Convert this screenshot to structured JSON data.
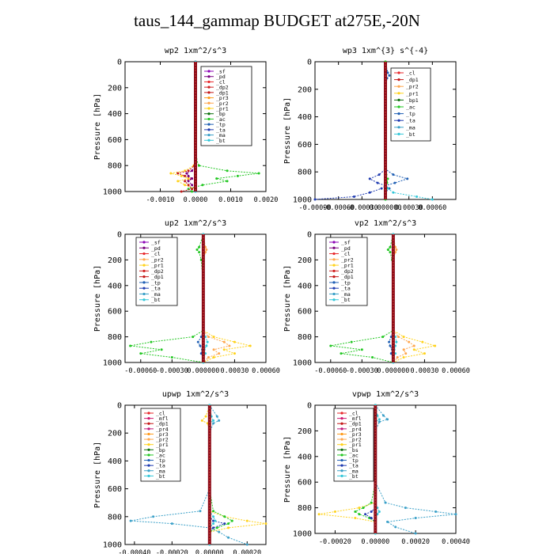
{
  "figure_title": "taus_144_gammap  BUDGET at275E,-20N",
  "colors": {
    "_sf": "#8b00b6",
    "_pd": "#7a0080",
    "_cl": "#e8262a",
    "_dp2": "#d02020",
    "_dp1": "#c41818",
    "_pr3": "#ff9a1a",
    "_pr2": "#ffa64d",
    "_pr1": "#ffd21a",
    "_bp": "#0a6e0a",
    "_ac": "#22c722",
    "_tp": "#1f5fb4",
    "_ta": "#1e3ab0",
    "_ma": "#3aa0c8",
    "_bt": "#33c7d9",
    "_mfl": "#d01870",
    "_pr4": "#c0187a",
    "_bp1": "#0a6e0a",
    "_bs": "#0a6e0a",
    "_rs": "#8a0010"
  },
  "chart_data": [
    {
      "type": "line",
      "title": "wp2  1xm^2/s^3",
      "ylabel": "Pressure [hPa]",
      "ylim": [
        1000,
        0
      ],
      "yticks": [
        "0",
        "200",
        "400",
        "600",
        "800",
        "1000"
      ],
      "xlim": [
        -0.002,
        0.002
      ],
      "xticks": [
        -0.001,
        0.0,
        0.001,
        0.002
      ],
      "xtick_labels": [
        "-0.0010",
        "0.0000",
        "0.0010",
        "0.0020"
      ],
      "legend": [
        "_sf",
        "_pd",
        "_cl",
        "_dp2",
        "_dp1",
        "_pr3",
        "_pr2",
        "_pr1",
        "_bp",
        "_ac",
        "_tp",
        "_ta",
        "_ma",
        "_bt"
      ],
      "y": [
        0,
        100,
        120,
        140,
        200,
        400,
        600,
        750,
        800,
        840,
        860,
        880,
        900,
        920,
        950,
        980,
        1000
      ],
      "series": [
        {
          "name": "_ac",
          "values": [
            0,
            0,
            0,
            0,
            0,
            0,
            0,
            2e-05,
            0.0001,
            0.0009,
            0.0018,
            0.0012,
            0.0006,
            0.0009,
            0.0002,
            -0.0002,
            -0.0001
          ]
        },
        {
          "name": "_pr1",
          "values": [
            0,
            0,
            0,
            0,
            0,
            0,
            0,
            0,
            -5e-05,
            -0.0003,
            -0.0007,
            -0.0004,
            -0.0002,
            -0.0005,
            -0.0003,
            0,
            0
          ]
        },
        {
          "name": "_dp1",
          "values": [
            0,
            0,
            0,
            0,
            0,
            0,
            0,
            0,
            -3e-05,
            -0.0002,
            -0.0005,
            -0.0003,
            -0.0001,
            -0.0003,
            -0.0002,
            -0.0001,
            -0.0004
          ]
        },
        {
          "name": "_pd",
          "values": [
            0,
            0,
            0,
            0,
            0,
            0,
            0,
            0,
            0,
            -0.0001,
            -0.00025,
            -0.0002,
            -0.0001,
            -0.0002,
            -0.0001,
            0,
            0
          ]
        },
        {
          "name": "_bt",
          "values": [
            0,
            0,
            1e-05,
            0,
            0,
            0,
            0,
            0,
            0,
            0,
            0,
            0,
            0,
            0,
            0,
            0,
            0
          ]
        }
      ]
    },
    {
      "type": "line",
      "title": "wp3  1xm^{3} s^{-4}",
      "ylabel": "Pressure [hPa]",
      "ylim": [
        1000,
        0
      ],
      "yticks": [
        "0",
        "200",
        "400",
        "600",
        "800",
        "1000"
      ],
      "xlim": [
        -0.0009,
        0.0009
      ],
      "xticks": [
        -0.0009,
        -0.0006,
        -0.0003,
        0,
        0.0003,
        0.0006
      ],
      "xtick_labels": [
        "-0.00090",
        "-0.00060",
        "-0.00030",
        "0.000000",
        "0.00030",
        "0.00060"
      ],
      "legend": [
        "_cl",
        "_dp1",
        "_pr2",
        "_pr1",
        "_bp1",
        "_ac",
        "_tp",
        "_ta",
        "_ma",
        "_bt"
      ],
      "y": [
        0,
        80,
        100,
        120,
        200,
        600,
        780,
        820,
        850,
        880,
        900,
        920,
        950,
        980,
        1000
      ],
      "series": [
        {
          "name": "_tp",
          "values": [
            0,
            3e-05,
            5e-05,
            2e-05,
            0,
            0,
            0,
            0.0001,
            0.00028,
            0.00012,
            0,
            5e-05,
            0,
            0,
            0
          ]
        },
        {
          "name": "_ta",
          "values": [
            0,
            0,
            0,
            0,
            0,
            0,
            0,
            -8e-05,
            -0.0002,
            -0.0001,
            0,
            -5e-05,
            -0.0002,
            -0.0004,
            -0.0009
          ]
        },
        {
          "name": "_bt",
          "values": [
            0,
            0,
            0,
            0,
            0,
            0,
            0,
            0,
            0,
            0,
            0,
            3e-05,
            0.0001,
            0.0004,
            0.0006
          ]
        },
        {
          "name": "_ac",
          "values": [
            0,
            0,
            0,
            0,
            0,
            0,
            0,
            1e-05,
            3e-05,
            2e-05,
            0,
            1e-05,
            0,
            0,
            0
          ]
        }
      ]
    },
    {
      "type": "line",
      "title": "up2  1xm^2/s^3",
      "ylabel": "Pressure [hPa]",
      "ylim": [
        1000,
        0
      ],
      "yticks": [
        "0",
        "200",
        "400",
        "600",
        "800",
        "1000"
      ],
      "xlim": [
        -0.00075,
        0.0006
      ],
      "xticks": [
        -0.0006,
        -0.0003,
        0,
        0.0003,
        0.0006
      ],
      "xtick_labels": [
        "-0.00060",
        "-0.00030",
        "0.000000",
        "0.00030",
        "0.00060"
      ],
      "legend": [
        "_sf",
        "_pd",
        "_cl",
        "_pr2",
        "_pr1",
        "_dp2",
        "_dp1",
        "_tp",
        "_ta",
        "_ma",
        "_bt"
      ],
      "y": [
        0,
        100,
        120,
        140,
        200,
        400,
        600,
        750,
        800,
        840,
        870,
        900,
        930,
        960,
        1000
      ],
      "series": [
        {
          "name": "_ac",
          "values": [
            0,
            -4e-05,
            -6e-05,
            -4e-05,
            -2e-05,
            0,
            0,
            0,
            -0.0001,
            -0.0005,
            -0.0007,
            -0.0004,
            -0.0006,
            -0.0003,
            0
          ]
        },
        {
          "name": "_pr1",
          "values": [
            0,
            0,
            0,
            0,
            0,
            0,
            0,
            0,
            0.0001,
            0.0003,
            0.00045,
            0.0002,
            0.0003,
            0.0001,
            0
          ]
        },
        {
          "name": "_pr2",
          "values": [
            0,
            2e-05,
            3e-05,
            2e-05,
            0,
            0,
            0,
            0,
            5e-05,
            0.0002,
            0.00025,
            0.0001,
            0.00015,
            5e-05,
            0
          ]
        },
        {
          "name": "_tp",
          "values": [
            0,
            0,
            0,
            0,
            0,
            0,
            0,
            0,
            -2e-05,
            -5e-05,
            -3e-05,
            -1e-05,
            -2e-05,
            0,
            0
          ]
        },
        {
          "name": "_bt",
          "values": [
            0,
            0,
            0,
            0,
            0,
            0,
            0,
            0,
            2e-05,
            4e-05,
            3e-05,
            1e-05,
            2e-05,
            0,
            0
          ]
        }
      ]
    },
    {
      "type": "line",
      "title": "vp2  1xm^2/s^3",
      "ylabel": "Pressure [hPa]",
      "ylim": [
        1000,
        0
      ],
      "yticks": [
        "0",
        "200",
        "400",
        "600",
        "800",
        "1000"
      ],
      "xlim": [
        -0.00075,
        0.0006
      ],
      "xticks": [
        -0.0006,
        -0.0003,
        0,
        0.0003,
        0.0006
      ],
      "xtick_labels": [
        "-0.00060",
        "-0.00030",
        "0.000000",
        "0.00030",
        "0.00060"
      ],
      "legend": [
        "_sf",
        "_pd",
        "_cl",
        "_pr2",
        "_pr1",
        "_dp2",
        "_dp1",
        "_tp",
        "_ta",
        "_ma",
        "_bt"
      ],
      "y": [
        0,
        100,
        120,
        140,
        200,
        400,
        600,
        750,
        800,
        840,
        870,
        900,
        930,
        960,
        1000
      ],
      "series": [
        {
          "name": "_ac",
          "values": [
            0,
            -3e-05,
            -5e-05,
            -3e-05,
            -1e-05,
            0,
            0,
            0,
            -0.0001,
            -0.0004,
            -0.0006,
            -0.0003,
            -0.0005,
            -0.0002,
            0
          ]
        },
        {
          "name": "_pr1",
          "values": [
            0,
            0,
            0,
            0,
            0,
            0,
            0,
            0,
            0.0001,
            0.00028,
            0.0004,
            0.0002,
            0.0003,
            0.0001,
            0
          ]
        },
        {
          "name": "_pr2",
          "values": [
            0,
            2e-05,
            3e-05,
            2e-05,
            0,
            0,
            0,
            0,
            5e-05,
            0.00015,
            0.0002,
            0.0001,
            0.00012,
            4e-05,
            0
          ]
        },
        {
          "name": "_tp",
          "values": [
            0,
            0,
            0,
            0,
            0,
            0,
            0,
            0,
            -2e-05,
            -4e-05,
            -3e-05,
            -1e-05,
            -2e-05,
            0,
            0
          ]
        },
        {
          "name": "_bt",
          "values": [
            0,
            0,
            0,
            0,
            0,
            0,
            0,
            0,
            2e-05,
            3e-05,
            2e-05,
            1e-05,
            2e-05,
            0,
            0
          ]
        }
      ]
    },
    {
      "type": "line",
      "title": "upwp  1xm^2/s^3",
      "ylabel": "Pressure [hPa]",
      "ylim": [
        1000,
        0
      ],
      "yticks": [
        "0",
        "200",
        "400",
        "600",
        "800",
        "1000"
      ],
      "xlim": [
        -0.00045,
        0.0003
      ],
      "xticks": [
        -0.0004,
        -0.0002,
        0,
        0.0002
      ],
      "xtick_labels": [
        "-0.00040",
        "-0.00020",
        "0.00000",
        "0.00020"
      ],
      "legend": [
        "_cl",
        "_mfl",
        "_dp1",
        "_pr4",
        "_pr3",
        "_pr2",
        "_pr1",
        "_bp",
        "_ac",
        "_tp",
        "_ta",
        "_ma",
        "_bt"
      ],
      "y": [
        0,
        80,
        110,
        130,
        200,
        600,
        760,
        800,
        830,
        850,
        880,
        910,
        950,
        1000
      ],
      "series": [
        {
          "name": "_ma",
          "values": [
            0,
            4e-05,
            5e-05,
            2e-05,
            0,
            0,
            -5e-05,
            -0.0003,
            -0.00042,
            -0.0002,
            0,
            5e-05,
            0.0001,
            0.0002
          ]
        },
        {
          "name": "_pr1",
          "values": [
            0,
            -2e-05,
            -4e-05,
            -1e-05,
            0,
            0,
            0,
            8e-05,
            0.0002,
            0.0003,
            0.0001,
            0,
            0,
            0
          ]
        },
        {
          "name": "_ac",
          "values": [
            0,
            0,
            0,
            0,
            0,
            0,
            2e-05,
            8e-05,
            0.00012,
            0.0001,
            4e-05,
            0,
            0,
            0
          ]
        },
        {
          "name": "_ta",
          "values": [
            0,
            0,
            0,
            0,
            0,
            0,
            0,
            0,
            2e-05,
            8e-05,
            2e-05,
            0,
            0,
            0
          ]
        },
        {
          "name": "_bt",
          "values": [
            0,
            1e-05,
            2e-05,
            0,
            0,
            0,
            0,
            2e-05,
            3e-05,
            2e-05,
            0,
            0,
            0,
            0
          ]
        }
      ]
    },
    {
      "type": "line",
      "title": "vpwp  1xm^2/s^3",
      "ylabel": "Pressure [hPa]",
      "ylim": [
        1000,
        0
      ],
      "yticks": [
        "0",
        "200",
        "400",
        "600",
        "800",
        "1000"
      ],
      "xlim": [
        -0.0003,
        0.0004
      ],
      "xticks": [
        -0.0002,
        0,
        0.0002,
        0.0004
      ],
      "xtick_labels": [
        "-0.00020",
        "0.00000",
        "0.00020",
        "0.00040"
      ],
      "legend": [
        "_cl",
        "_mfl",
        "_dp1",
        "_pr4",
        "_pr3",
        "_pr2",
        "_pr1",
        "_bs",
        "_ac",
        "_tp",
        "_ta",
        "_ma",
        "_bt"
      ],
      "y": [
        0,
        80,
        110,
        130,
        200,
        600,
        760,
        800,
        830,
        850,
        880,
        910,
        950,
        1000
      ],
      "series": [
        {
          "name": "_ma",
          "values": [
            0,
            4e-05,
            6e-05,
            2e-05,
            0,
            0,
            5e-05,
            0.00015,
            0.0003,
            0.0004,
            0.0002,
            6e-05,
            0.0001,
            0.0002
          ]
        },
        {
          "name": "_pr1",
          "values": [
            0,
            -2e-05,
            -3e-05,
            -1e-05,
            0,
            0,
            0,
            -8e-05,
            -0.0002,
            -0.00028,
            -0.0001,
            0,
            0,
            0
          ]
        },
        {
          "name": "_ac",
          "values": [
            0,
            0,
            0,
            0,
            0,
            0,
            -2e-05,
            -6e-05,
            -0.0001,
            -8e-05,
            -3e-05,
            0,
            0,
            0
          ]
        },
        {
          "name": "_ta",
          "values": [
            0,
            0,
            0,
            0,
            0,
            0,
            0,
            0,
            -2e-05,
            -5e-05,
            -2e-05,
            0,
            0,
            0
          ]
        },
        {
          "name": "_bt",
          "values": [
            0,
            1e-05,
            2e-05,
            0,
            0,
            0,
            0,
            1e-05,
            2e-05,
            1e-05,
            0,
            0,
            0,
            0
          ]
        }
      ]
    }
  ]
}
